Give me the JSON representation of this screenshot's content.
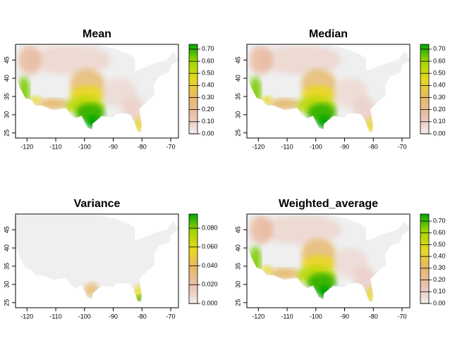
{
  "chart_data": [
    {
      "type": "raster",
      "title": "Mean",
      "xlim": [
        -124,
        -67.3
      ],
      "ylim": [
        23.6,
        49.3
      ],
      "xticks": [
        -120,
        -110,
        -100,
        -90,
        -80,
        -70
      ],
      "yticks": [
        25,
        30,
        35,
        40,
        45
      ],
      "legend": {
        "lim": [
          0,
          0.74
        ],
        "colors": [
          "#f2eded",
          "#e9c0ad",
          "#e6b868",
          "#e8d820",
          "#a6d800",
          "#00a600"
        ],
        "ticks": [
          {
            "value": 0,
            "label": "0.00"
          },
          {
            "value": 0.1,
            "label": "0.10"
          },
          {
            "value": 0.2,
            "label": "0.20"
          },
          {
            "value": 0.3,
            "label": "0.30"
          },
          {
            "value": 0.4,
            "label": "0.40"
          },
          {
            "value": 0.5,
            "label": "0.50"
          },
          {
            "value": 0.6,
            "label": "0.60"
          },
          {
            "value": 0.7,
            "label": "0.70"
          }
        ]
      }
    },
    {
      "type": "raster",
      "title": "Median",
      "xlim": [
        -124,
        -67.3
      ],
      "ylim": [
        23.6,
        49.3
      ],
      "xticks": [
        -120,
        -110,
        -100,
        -90,
        -80,
        -70
      ],
      "yticks": [
        25,
        30,
        35,
        40,
        45
      ],
      "legend": {
        "lim": [
          0,
          0.74
        ],
        "colors": [
          "#f2eded",
          "#e9c0ad",
          "#e6b868",
          "#e8d820",
          "#a6d800",
          "#00a600"
        ],
        "ticks": [
          {
            "value": 0,
            "label": "0.00"
          },
          {
            "value": 0.1,
            "label": "0.10"
          },
          {
            "value": 0.2,
            "label": "0.20"
          },
          {
            "value": 0.3,
            "label": "0.30"
          },
          {
            "value": 0.4,
            "label": "0.40"
          },
          {
            "value": 0.5,
            "label": "0.50"
          },
          {
            "value": 0.6,
            "label": "0.60"
          },
          {
            "value": 0.7,
            "label": "0.70"
          }
        ]
      }
    },
    {
      "type": "raster",
      "title": "Variance",
      "xlim": [
        -124,
        -67.3
      ],
      "ylim": [
        23.6,
        49.3
      ],
      "xticks": [
        -120,
        -110,
        -100,
        -90,
        -80,
        -70
      ],
      "yticks": [
        25,
        30,
        35,
        40,
        45
      ],
      "legend": {
        "lim": [
          0,
          0.095
        ],
        "colors": [
          "#f2eded",
          "#e9c0ad",
          "#e6b868",
          "#e8d820",
          "#a6d800",
          "#00a600"
        ],
        "ticks": [
          {
            "value": 0,
            "label": "0.000"
          },
          {
            "value": 0.02,
            "label": "0.020"
          },
          {
            "value": 0.04,
            "label": "0.040"
          },
          {
            "value": 0.06,
            "label": "0.060"
          },
          {
            "value": 0.08,
            "label": "0.080"
          }
        ]
      }
    },
    {
      "type": "raster",
      "title": "Weighted_average",
      "xlim": [
        -124,
        -67.3
      ],
      "ylim": [
        23.6,
        49.3
      ],
      "xticks": [
        -120,
        -110,
        -100,
        -90,
        -80,
        -70
      ],
      "yticks": [
        25,
        30,
        35,
        40,
        45
      ],
      "legend": {
        "lim": [
          0,
          0.76
        ],
        "colors": [
          "#f2eded",
          "#e9c0ad",
          "#e6b868",
          "#e8d820",
          "#a6d800",
          "#00a600"
        ],
        "ticks": [
          {
            "value": 0,
            "label": "0.00"
          },
          {
            "value": 0.1,
            "label": "0.10"
          },
          {
            "value": 0.2,
            "label": "0.20"
          },
          {
            "value": 0.3,
            "label": "0.30"
          },
          {
            "value": 0.4,
            "label": "0.40"
          },
          {
            "value": 0.5,
            "label": "0.50"
          },
          {
            "value": 0.6,
            "label": "0.60"
          },
          {
            "value": 0.7,
            "label": "0.70"
          }
        ]
      }
    }
  ]
}
